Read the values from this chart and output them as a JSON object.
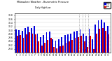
{
  "title": "Milwaukee Weather - Barometric Pressure",
  "subtitle": "Daily High/Low",
  "legend_high": "High",
  "legend_low": "Low",
  "color_high": "#0000dd",
  "color_low": "#dd0000",
  "background_color": "#ffffff",
  "plot_bg": "#ffffff",
  "ylim": [
    28.8,
    30.9
  ],
  "ytick_vals": [
    29.0,
    29.2,
    29.4,
    29.6,
    29.8,
    30.0,
    30.2,
    30.4,
    30.6,
    30.8
  ],
  "bar_width": 0.42,
  "days": [
    1,
    2,
    3,
    4,
    5,
    6,
    7,
    8,
    9,
    10,
    11,
    12,
    13,
    14,
    15,
    16,
    17,
    18,
    19,
    20,
    21,
    22,
    23,
    24,
    25,
    26,
    27,
    28,
    29,
    30,
    31
  ],
  "highs": [
    30.05,
    30.0,
    29.95,
    30.1,
    30.18,
    30.1,
    30.22,
    29.82,
    29.62,
    29.72,
    29.87,
    29.92,
    29.52,
    29.42,
    29.52,
    29.62,
    29.72,
    29.77,
    29.82,
    29.92,
    29.97,
    30.02,
    29.82,
    29.68,
    30.08,
    29.52,
    30.32,
    30.52,
    30.57,
    30.42,
    30.22
  ],
  "lows": [
    29.68,
    29.73,
    29.58,
    29.78,
    29.88,
    29.83,
    29.78,
    29.38,
    29.18,
    29.33,
    29.48,
    29.58,
    29.08,
    29.03,
    29.13,
    29.18,
    29.33,
    29.38,
    29.48,
    29.58,
    29.63,
    29.68,
    29.38,
    29.08,
    29.68,
    28.98,
    29.83,
    30.08,
    30.13,
    29.98,
    29.78
  ],
  "dotted_lines": [
    21,
    22,
    23,
    24
  ],
  "ybaseline": 28.8
}
